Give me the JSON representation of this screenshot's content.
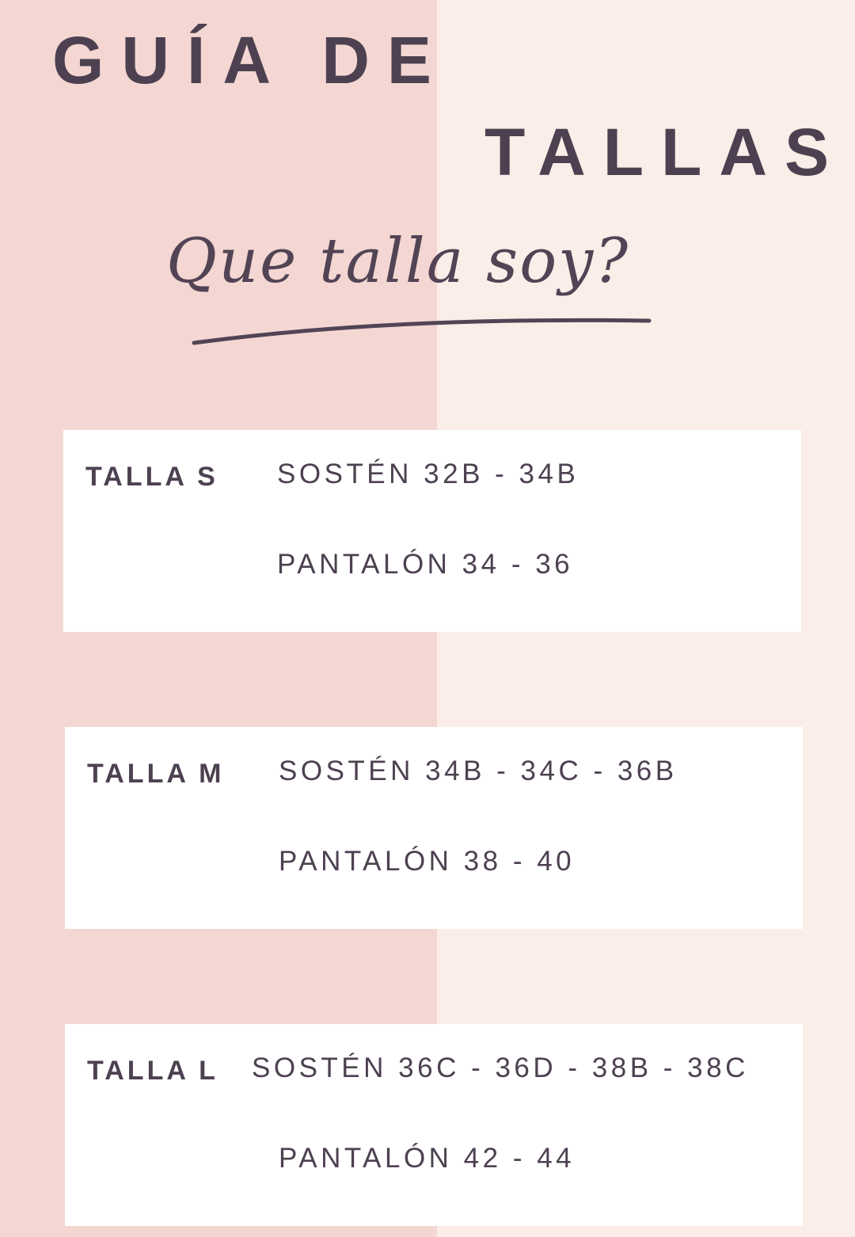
{
  "title": {
    "line1": "GUÍA DE",
    "line2": "TALLAS"
  },
  "subtitle": "Que talla soy?",
  "colors": {
    "left_bg": "#f4d7d2",
    "right_bg": "#fbede7",
    "text": "#4d4151",
    "card": "#ffffff"
  },
  "sizes": [
    {
      "label": "TALLA S",
      "bra": "SOSTÉN 32B - 34B",
      "pants": "PANTALÓN 34 - 36"
    },
    {
      "label": "TALLA M",
      "bra": "SOSTÉN 34B - 34C - 36B",
      "pants": "PANTALÓN 38 - 40"
    },
    {
      "label": "TALLA L",
      "bra": "SOSTÉN 36C - 36D - 38B - 38C",
      "pants": "PANTALÓN 42 - 44"
    }
  ]
}
